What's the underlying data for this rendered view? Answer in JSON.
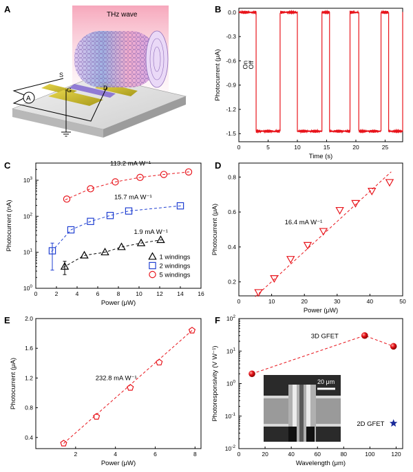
{
  "panels": {
    "A": {
      "letter": "A",
      "label_thz": "THz wave",
      "label_s": "S",
      "label_g": "G",
      "label_d": "D",
      "label_meter": "A"
    },
    "B": {
      "letter": "B"
    },
    "C": {
      "letter": "C"
    },
    "D": {
      "letter": "D"
    },
    "E": {
      "letter": "E"
    },
    "F": {
      "letter": "F",
      "inset_scale": "20 μm"
    }
  },
  "chart_data": [
    {
      "id": "B",
      "type": "line",
      "xlabel": "Time (s)",
      "ylabel": "Photocurrent (μA)",
      "xlim": [
        0,
        28
      ],
      "ylim": [
        -1.6,
        0.05
      ],
      "xticks": [
        "0",
        "5",
        "10",
        "15",
        "20",
        "25"
      ],
      "yticks": [
        "0.0",
        "-0.3",
        "-0.6",
        "-0.9",
        "-1.2",
        "-1.5"
      ],
      "color": "#e8141b",
      "annotations": [
        "On",
        "Off"
      ],
      "on_intervals": [
        [
          2.9,
          7.0
        ],
        [
          10.0,
          14.2
        ],
        [
          15.5,
          19.0
        ],
        [
          20.5,
          24.3
        ],
        [
          25.6,
          28.0
        ]
      ],
      "on_level": -1.47,
      "off_level": 0.0
    },
    {
      "id": "C",
      "type": "scatter",
      "xlabel": "Power (μW)",
      "ylabel": "Photocurrent (nA)",
      "scale_y": "log",
      "xlim": [
        0,
        16
      ],
      "ylim": [
        1,
        3000
      ],
      "xticks": [
        "0",
        "2",
        "4",
        "6",
        "8",
        "10",
        "12",
        "14",
        "16"
      ],
      "legend_position": "bottom-right",
      "series": [
        {
          "name": "1 windings",
          "color": "#000000",
          "marker": "triangle",
          "annotation": "1.9 mA W⁻¹",
          "x": [
            2.8,
            4.7,
            6.7,
            8.3,
            10.2,
            12.1
          ],
          "y": [
            4.0,
            8.2,
            10.0,
            14.0,
            18.0,
            22.0
          ]
        },
        {
          "name": "2 windings",
          "color": "#1f3fd1",
          "marker": "square",
          "annotation": "15.7 mA W⁻¹",
          "x": [
            1.6,
            3.4,
            5.3,
            7.2,
            9.0,
            14.0
          ],
          "y": [
            11.0,
            42.0,
            72.0,
            105.0,
            140.0,
            195.0
          ]
        },
        {
          "name": "5 windings",
          "color": "#e8141b",
          "marker": "circle",
          "annotation": "113.2 mA W⁻¹",
          "x": [
            3.0,
            5.3,
            7.7,
            10.1,
            12.4,
            14.8
          ],
          "y": [
            300.0,
            580.0,
            900.0,
            1200.0,
            1450.0,
            1700.0
          ]
        }
      ]
    },
    {
      "id": "D",
      "type": "scatter",
      "xlabel": "Power (μW)",
      "ylabel": "Photocurrent (μA)",
      "xlim": [
        0,
        50
      ],
      "ylim": [
        0.12,
        0.88
      ],
      "xticks": [
        "0",
        "10",
        "20",
        "30",
        "40",
        "50"
      ],
      "yticks": [
        "0.2",
        "0.4",
        "0.6",
        "0.8"
      ],
      "annotation": "16.4 mA W⁻¹",
      "color": "#e8141b",
      "marker": "triangle-down",
      "x": [
        6.0,
        10.8,
        15.8,
        21.0,
        25.8,
        30.8,
        35.6,
        40.6,
        46.0
      ],
      "y": [
        0.14,
        0.22,
        0.33,
        0.41,
        0.49,
        0.61,
        0.65,
        0.72,
        0.77
      ]
    },
    {
      "id": "E",
      "type": "scatter",
      "xlabel": "Power (μW)",
      "ylabel": "Photocurrent (μA)",
      "xlim": [
        0,
        8.3
      ],
      "ylim": [
        0.25,
        2.0
      ],
      "xticks": [
        "2",
        "4",
        "6",
        "8"
      ],
      "yticks": [
        "0.4",
        "0.8",
        "1.2",
        "1.6",
        "2.0"
      ],
      "annotation": "232.8 mA W⁻¹",
      "color": "#e8141b",
      "marker": "pentagon",
      "x": [
        1.4,
        3.05,
        4.75,
        6.2,
        7.85
      ],
      "y": [
        0.32,
        0.68,
        1.07,
        1.41,
        1.84
      ]
    },
    {
      "id": "F",
      "type": "scatter",
      "xlabel": "Wavelength (μm)",
      "ylabel": "Photoresponsivity (V W⁻¹)",
      "scale_y": "log",
      "xlim": [
        0,
        125
      ],
      "ylim": [
        0.01,
        100
      ],
      "xticks": [
        "0",
        "20",
        "40",
        "60",
        "80",
        "100",
        "120"
      ],
      "series": [
        {
          "name": "3D GFET",
          "color": "#e8141b",
          "marker": "sphere",
          "x": [
            10,
            96,
            118
          ],
          "y": [
            2.0,
            30.0,
            14.0
          ]
        },
        {
          "name": "2D GFET",
          "color": "#1a2a9a",
          "marker": "star",
          "x": [
            118
          ],
          "y": [
            0.06
          ]
        }
      ]
    }
  ]
}
